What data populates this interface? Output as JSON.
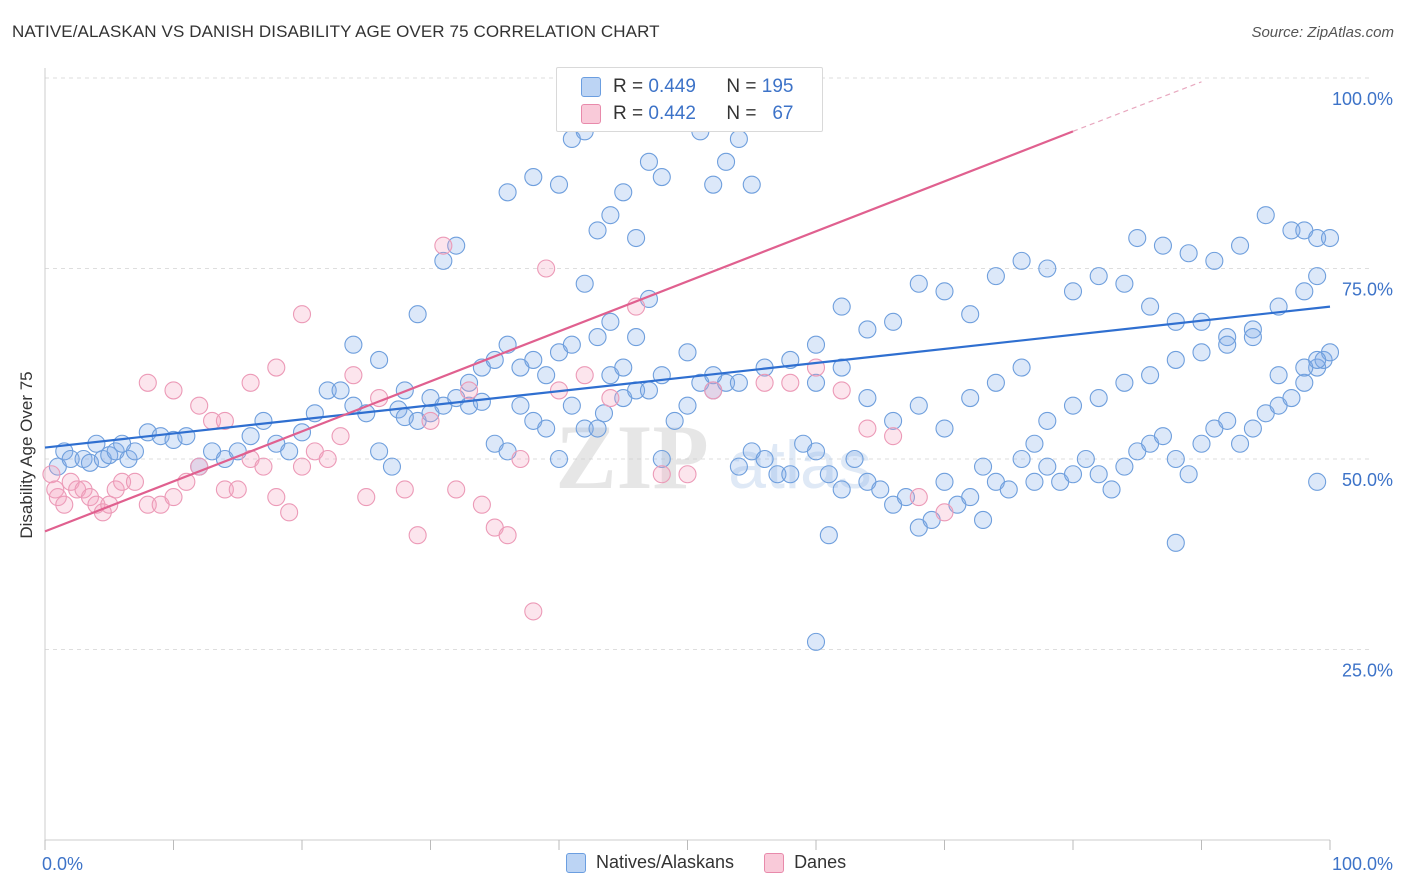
{
  "header": {
    "title": "NATIVE/ALASKAN VS DANISH DISABILITY AGE OVER 75 CORRELATION CHART",
    "source": "Source: ZipAtlas.com"
  },
  "legend": {
    "r_label": "R =",
    "n_label": "N =",
    "entries": [
      {
        "r": "0.449",
        "n": "195",
        "color": "#a9c8f0",
        "border": "#6b9ee0"
      },
      {
        "r": "0.442",
        "n": "67",
        "color": "#f7bcd0",
        "border": "#e88aab"
      }
    ]
  },
  "bottom_legend": [
    "Natives/Alaskans",
    "Danes"
  ],
  "watermark": {
    "zip": "ZIP",
    "atlas": "atlas"
  },
  "colors": {
    "blue_fill": "rgba(128,172,232,0.28)",
    "blue_stroke": "#6f9fdd",
    "blue_line": "#2f6fd0",
    "pink_fill": "rgba(244,160,190,0.28)",
    "pink_stroke": "#ec9ab7",
    "pink_line": "#e0608f",
    "axis_text": "#3d73c8"
  },
  "chart_data": {
    "type": "scatter",
    "title": "NATIVE/ALASKAN VS DANISH DISABILITY AGE OVER 75 CORRELATION CHART",
    "xlabel": "",
    "ylabel": "Disability Age Over 75",
    "xlim": [
      0,
      100
    ],
    "ylim": [
      0,
      100
    ],
    "x_tick_labels": [
      "0.0%",
      "100.0%"
    ],
    "y_tick_labels": [
      "25.0%",
      "50.0%",
      "75.0%",
      "100.0%"
    ],
    "y_ticks": [
      25,
      50,
      75,
      100
    ],
    "grid": true,
    "series": [
      {
        "name": "Natives/Alaskans",
        "r": 0.449,
        "n": 195,
        "trend": {
          "x": [
            0,
            100
          ],
          "y": [
            51.5,
            70.0
          ]
        },
        "points": [
          [
            1,
            49
          ],
          [
            1.5,
            51
          ],
          [
            2,
            50
          ],
          [
            3,
            50
          ],
          [
            3.5,
            49.5
          ],
          [
            4,
            52
          ],
          [
            4.5,
            50
          ],
          [
            5,
            50.5
          ],
          [
            5.5,
            51
          ],
          [
            6,
            52
          ],
          [
            6.5,
            50
          ],
          [
            7,
            51
          ],
          [
            8,
            53.5
          ],
          [
            9,
            53
          ],
          [
            10,
            52.5
          ],
          [
            11,
            53
          ],
          [
            12,
            49
          ],
          [
            13,
            51
          ],
          [
            14,
            50
          ],
          [
            15,
            51
          ],
          [
            16,
            53
          ],
          [
            17,
            55
          ],
          [
            18,
            52
          ],
          [
            19,
            51
          ],
          [
            20,
            53.5
          ],
          [
            21,
            56
          ],
          [
            22,
            59
          ],
          [
            23,
            59
          ],
          [
            24,
            57
          ],
          [
            25,
            56
          ],
          [
            26,
            51
          ],
          [
            27,
            49
          ],
          [
            27.5,
            56.5
          ],
          [
            28,
            55.5
          ],
          [
            29,
            55
          ],
          [
            30,
            56
          ],
          [
            31,
            57
          ],
          [
            32,
            58
          ],
          [
            33,
            57
          ],
          [
            34,
            57.5
          ],
          [
            35,
            52
          ],
          [
            36,
            51
          ],
          [
            37,
            57
          ],
          [
            38,
            55
          ],
          [
            39,
            54
          ],
          [
            40,
            50
          ],
          [
            41,
            57
          ],
          [
            42,
            54
          ],
          [
            43,
            54
          ],
          [
            43.5,
            56
          ],
          [
            44,
            61
          ],
          [
            45,
            58
          ],
          [
            46,
            59
          ],
          [
            47,
            59
          ],
          [
            48,
            50
          ],
          [
            49,
            55
          ],
          [
            50,
            57
          ],
          [
            51,
            60
          ],
          [
            52,
            59
          ],
          [
            53,
            60
          ],
          [
            54,
            49
          ],
          [
            55,
            51
          ],
          [
            56,
            50
          ],
          [
            57,
            48
          ],
          [
            58,
            48
          ],
          [
            59,
            52
          ],
          [
            60,
            51
          ],
          [
            61,
            48
          ],
          [
            62,
            46
          ],
          [
            63,
            50
          ],
          [
            64,
            47
          ],
          [
            65,
            46
          ],
          [
            66,
            44
          ],
          [
            67,
            45
          ],
          [
            68,
            41
          ],
          [
            69,
            42
          ],
          [
            70,
            47
          ],
          [
            71,
            44
          ],
          [
            72,
            45
          ],
          [
            73,
            49
          ],
          [
            74,
            47
          ],
          [
            75,
            46
          ],
          [
            76,
            50
          ],
          [
            77,
            52
          ],
          [
            78,
            49
          ],
          [
            79,
            47
          ],
          [
            80,
            48
          ],
          [
            81,
            50
          ],
          [
            82,
            48
          ],
          [
            83,
            46
          ],
          [
            84,
            49
          ],
          [
            85,
            51
          ],
          [
            86,
            52
          ],
          [
            87,
            53
          ],
          [
            88,
            50
          ],
          [
            89,
            48
          ],
          [
            90,
            52
          ],
          [
            91,
            54
          ],
          [
            92,
            55
          ],
          [
            93,
            52
          ],
          [
            94,
            54
          ],
          [
            95,
            56
          ],
          [
            96,
            57
          ],
          [
            97,
            58
          ],
          [
            98,
            60
          ],
          [
            99,
            62
          ],
          [
            99.5,
            63
          ],
          [
            100,
            64
          ],
          [
            62,
            70
          ],
          [
            64,
            67
          ],
          [
            66,
            68
          ],
          [
            68,
            73
          ],
          [
            70,
            72
          ],
          [
            72,
            69
          ],
          [
            74,
            74
          ],
          [
            76,
            76
          ],
          [
            78,
            75
          ],
          [
            80,
            72
          ],
          [
            82,
            74
          ],
          [
            84,
            73
          ],
          [
            86,
            70
          ],
          [
            88,
            68
          ],
          [
            90,
            68
          ],
          [
            92,
            66
          ],
          [
            94,
            67
          ],
          [
            96,
            70
          ],
          [
            98,
            72
          ],
          [
            99,
            74
          ],
          [
            85,
            79
          ],
          [
            87,
            78
          ],
          [
            89,
            77
          ],
          [
            91,
            76
          ],
          [
            93,
            78
          ],
          [
            95,
            82
          ],
          [
            97,
            80
          ],
          [
            98,
            80
          ],
          [
            99,
            79
          ],
          [
            100,
            79
          ],
          [
            60,
            60
          ],
          [
            62,
            62
          ],
          [
            64,
            58
          ],
          [
            66,
            55
          ],
          [
            68,
            57
          ],
          [
            70,
            54
          ],
          [
            72,
            58
          ],
          [
            74,
            60
          ],
          [
            76,
            62
          ],
          [
            78,
            55
          ],
          [
            80,
            57
          ],
          [
            82,
            58
          ],
          [
            84,
            60
          ],
          [
            86,
            61
          ],
          [
            88,
            63
          ],
          [
            90,
            64
          ],
          [
            92,
            65
          ],
          [
            94,
            66
          ],
          [
            96,
            61
          ],
          [
            98,
            62
          ],
          [
            99,
            63
          ],
          [
            24,
            65
          ],
          [
            26,
            63
          ],
          [
            28,
            59
          ],
          [
            29,
            69
          ],
          [
            30,
            58
          ],
          [
            31,
            76
          ],
          [
            32,
            78
          ],
          [
            33,
            60
          ],
          [
            34,
            62
          ],
          [
            35,
            63
          ],
          [
            36,
            65
          ],
          [
            37,
            62
          ],
          [
            38,
            63
          ],
          [
            39,
            61
          ],
          [
            40,
            64
          ],
          [
            41,
            65
          ],
          [
            42,
            73
          ],
          [
            43,
            66
          ],
          [
            44,
            68
          ],
          [
            45,
            62
          ],
          [
            46,
            66
          ],
          [
            47,
            71
          ],
          [
            48,
            61
          ],
          [
            50,
            64
          ],
          [
            52,
            61
          ],
          [
            54,
            60
          ],
          [
            56,
            62
          ],
          [
            58,
            63
          ],
          [
            60,
            65
          ],
          [
            36,
            85
          ],
          [
            38,
            87
          ],
          [
            40,
            86
          ],
          [
            41,
            92
          ],
          [
            42,
            93
          ],
          [
            43,
            80
          ],
          [
            44,
            82
          ],
          [
            45,
            85
          ],
          [
            46,
            79
          ],
          [
            47,
            89
          ],
          [
            48,
            87
          ],
          [
            50,
            100
          ],
          [
            51,
            93
          ],
          [
            52,
            86
          ],
          [
            53,
            89
          ],
          [
            54,
            92
          ],
          [
            55,
            86
          ],
          [
            56,
            99
          ],
          [
            60,
            26
          ],
          [
            88,
            39
          ],
          [
            99,
            47
          ],
          [
            77,
            47
          ],
          [
            73,
            42
          ],
          [
            61,
            40
          ]
        ]
      },
      {
        "name": "Danes",
        "r": 0.442,
        "n": 67,
        "trend": {
          "x": [
            0,
            80
          ],
          "y": [
            40.5,
            93.0
          ]
        },
        "trend_extension": {
          "x": [
            80,
            90
          ],
          "y": [
            93.0,
            99.5
          ]
        },
        "points": [
          [
            0.5,
            48
          ],
          [
            0.8,
            46
          ],
          [
            1,
            45
          ],
          [
            1.5,
            44
          ],
          [
            2,
            47
          ],
          [
            2.5,
            46
          ],
          [
            3,
            46
          ],
          [
            3.5,
            45
          ],
          [
            4,
            44
          ],
          [
            4.5,
            43
          ],
          [
            5,
            44
          ],
          [
            5.5,
            46
          ],
          [
            6,
            47
          ],
          [
            7,
            47
          ],
          [
            8,
            44
          ],
          [
            9,
            44
          ],
          [
            10,
            45
          ],
          [
            11,
            47
          ],
          [
            12,
            49
          ],
          [
            13,
            55
          ],
          [
            14,
            46
          ],
          [
            15,
            46
          ],
          [
            16,
            50
          ],
          [
            17,
            49
          ],
          [
            18,
            45
          ],
          [
            19,
            43
          ],
          [
            20,
            49
          ],
          [
            21,
            51
          ],
          [
            22,
            50
          ],
          [
            23,
            53
          ],
          [
            24,
            61
          ],
          [
            25,
            45
          ],
          [
            26,
            58
          ],
          [
            28,
            46
          ],
          [
            29,
            40
          ],
          [
            30,
            55
          ],
          [
            31,
            78
          ],
          [
            32,
            46
          ],
          [
            33,
            59
          ],
          [
            34,
            44
          ],
          [
            35,
            41
          ],
          [
            36,
            40
          ],
          [
            37,
            50
          ],
          [
            38,
            30
          ],
          [
            39,
            75
          ],
          [
            40,
            59
          ],
          [
            42,
            61
          ],
          [
            44,
            58
          ],
          [
            46,
            70
          ],
          [
            48,
            48
          ],
          [
            50,
            48
          ],
          [
            52,
            59
          ],
          [
            56,
            60
          ],
          [
            58,
            60
          ],
          [
            60,
            62
          ],
          [
            62,
            59
          ],
          [
            64,
            54
          ],
          [
            66,
            53
          ],
          [
            68,
            45
          ],
          [
            70,
            43
          ],
          [
            8,
            60
          ],
          [
            10,
            59
          ],
          [
            12,
            57
          ],
          [
            14,
            55
          ],
          [
            16,
            60
          ],
          [
            18,
            62
          ],
          [
            20,
            69
          ]
        ]
      }
    ]
  }
}
